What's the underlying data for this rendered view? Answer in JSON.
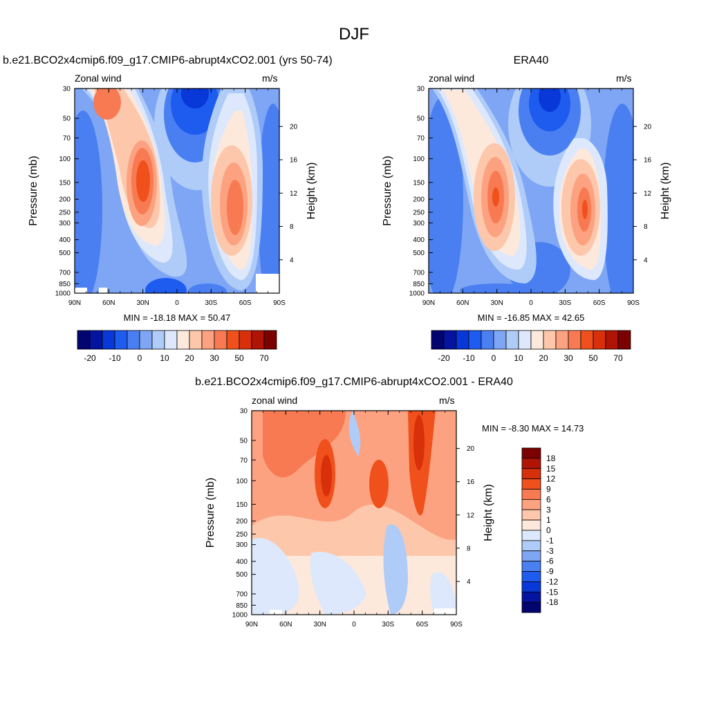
{
  "figure": {
    "title": "DJF",
    "season": "DJF"
  },
  "colorbar_colors": [
    "#020470",
    "#0414a0",
    "#0838d8",
    "#1e5cf0",
    "#4a7ff2",
    "#7ea6f5",
    "#afcbf8",
    "#dde8fc",
    "#fde9dc",
    "#fdc7ab",
    "#fca280",
    "#f87a52",
    "#f0501c",
    "#d8300a",
    "#b01404",
    "#7c0202"
  ],
  "chart_data": [
    {
      "id": "model",
      "type": "contour",
      "title": "b.e21.BCO2x4cmip6.f09_g17.CMIP6-abrupt4xCO2.001 (yrs 50-74)",
      "left_string": "Zonal wind",
      "right_string": "m/s",
      "xlabel": "",
      "ylabel": "Pressure (mb)",
      "y2label": "Height (km)",
      "x_ticks": [
        "90N",
        "60N",
        "30N",
        "0",
        "30S",
        "60S",
        "90S"
      ],
      "x_range": [
        90,
        -90
      ],
      "y_ticks": [
        "30",
        "50",
        "70",
        "100",
        "150",
        "200",
        "250",
        "300",
        "400",
        "500",
        "700",
        "850",
        "1000"
      ],
      "y_range": [
        1000,
        30
      ],
      "y_scale": "log",
      "height_ticks": [
        "4",
        "8",
        "12",
        "16",
        "20"
      ],
      "min_label": "MIN = -18.18  MAX =  50.47",
      "min": -18.18,
      "max": 50.47,
      "colorbar_labels": [
        "-20",
        "-10",
        "0",
        "10",
        "20",
        "30",
        "50",
        "70"
      ],
      "colorbar_orientation": "horizontal"
    },
    {
      "id": "obs",
      "type": "contour",
      "title": "ERA40",
      "left_string": "zonal wind",
      "right_string": "m/s",
      "xlabel": "",
      "ylabel": "Pressure (mb)",
      "y2label": "Height (km)",
      "x_ticks": [
        "90N",
        "60N",
        "30N",
        "0",
        "30S",
        "60S",
        "90S"
      ],
      "x_range": [
        90,
        -90
      ],
      "y_ticks": [
        "30",
        "50",
        "70",
        "100",
        "150",
        "200",
        "250",
        "300",
        "400",
        "500",
        "700",
        "850",
        "1000"
      ],
      "y_range": [
        1000,
        30
      ],
      "y_scale": "log",
      "height_ticks": [
        "4",
        "8",
        "12",
        "16",
        "20"
      ],
      "min_label": "MIN = -16.85  MAX =  42.65",
      "min": -16.85,
      "max": 42.65,
      "colorbar_labels": [
        "-20",
        "-10",
        "0",
        "10",
        "20",
        "30",
        "50",
        "70"
      ],
      "colorbar_orientation": "horizontal"
    },
    {
      "id": "diff",
      "type": "contour",
      "title": "b.e21.BCO2x4cmip6.f09_g17.CMIP6-abrupt4xCO2.001 - ERA40",
      "left_string": "zonal wind",
      "right_string": "m/s",
      "xlabel": "",
      "ylabel": "Pressure (mb)",
      "y2label": "Height (km)",
      "x_ticks": [
        "90N",
        "60N",
        "30N",
        "0",
        "30S",
        "60S",
        "90S"
      ],
      "x_range": [
        90,
        -90
      ],
      "y_ticks": [
        "30",
        "50",
        "70",
        "100",
        "150",
        "200",
        "250",
        "300",
        "400",
        "500",
        "700",
        "850",
        "1000"
      ],
      "y_range": [
        1000,
        30
      ],
      "y_scale": "log",
      "height_ticks": [
        "4",
        "8",
        "12",
        "16",
        "20"
      ],
      "min_label": "MIN =  -8.30  MAX =  14.73",
      "min": -8.3,
      "max": 14.73,
      "colorbar_labels": [
        "18",
        "15",
        "12",
        "9",
        "6",
        "3",
        "1",
        "0",
        "-1",
        "-3",
        "-6",
        "-9",
        "-12",
        "-15",
        "-18"
      ],
      "colorbar_orientation": "vertical"
    }
  ]
}
